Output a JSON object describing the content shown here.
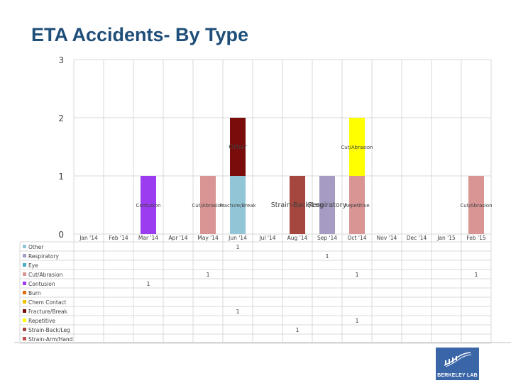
{
  "page": {
    "title": "ETA Accidents- By Type"
  },
  "logo": {
    "text": "BERKELEY LAB"
  },
  "chart_data": {
    "type": "bar",
    "stacked": true,
    "title": "ETA Accidents- By Type",
    "xlabel": "",
    "ylabel": "",
    "ylim": [
      0,
      3
    ],
    "yticks": [
      "0",
      "1",
      "2",
      "3"
    ],
    "grid": true,
    "legend": "bottom-left",
    "data_table": true,
    "categories": [
      "Jan '14",
      "Feb '14",
      "Mar '14",
      "Apr '14",
      "May '14",
      "Jun '14",
      "Jul '14",
      "Aug '14",
      "Sep '14",
      "Oct '14",
      "Nov '14",
      "Dec '14",
      "Jan '15",
      "Feb '15"
    ],
    "series": [
      {
        "name": "Other",
        "color": "#92c5d6",
        "values": [
          null,
          null,
          null,
          null,
          null,
          1,
          null,
          null,
          null,
          null,
          null,
          null,
          null,
          null
        ],
        "labels": [
          "",
          "",
          "",
          "",
          "",
          "1",
          "",
          "",
          "",
          "",
          "",
          "",
          "",
          ""
        ]
      },
      {
        "name": "Respiratory",
        "color": "#a69bc2",
        "values": [
          null,
          null,
          null,
          null,
          null,
          null,
          null,
          null,
          1,
          null,
          null,
          null,
          null,
          null
        ],
        "labels": [
          "",
          "",
          "",
          "",
          "",
          "",
          "",
          "",
          "1",
          "",
          "",
          "",
          "",
          ""
        ]
      },
      {
        "name": "Eye",
        "color": "#4bacc6",
        "values": [
          null,
          null,
          null,
          null,
          null,
          null,
          null,
          null,
          null,
          null,
          null,
          null,
          null,
          null
        ],
        "labels": [
          "",
          "",
          "",
          "",
          "",
          "",
          "",
          "",
          "",
          "",
          "",
          "",
          "",
          ""
        ]
      },
      {
        "name": "Cut/Abrasion",
        "color": "#d99594",
        "values": [
          null,
          null,
          null,
          null,
          1,
          null,
          null,
          null,
          null,
          1,
          null,
          null,
          null,
          1
        ],
        "labels": [
          "",
          "",
          "",
          "",
          "1",
          "",
          "",
          "",
          "",
          "1",
          "",
          "",
          "",
          "1"
        ]
      },
      {
        "name": "Contusion",
        "color": "#9b3cf0",
        "values": [
          null,
          null,
          1,
          null,
          null,
          null,
          null,
          null,
          null,
          null,
          null,
          null,
          null,
          null
        ],
        "labels": [
          "",
          "",
          "1",
          "",
          "",
          "",
          "",
          "",
          "",
          "",
          "",
          "",
          "",
          ""
        ]
      },
      {
        "name": "Burn",
        "color": "#e46c0a",
        "values": [
          null,
          null,
          null,
          null,
          null,
          null,
          null,
          null,
          null,
          null,
          null,
          null,
          null,
          null
        ],
        "labels": [
          "",
          "",
          "",
          "",
          "",
          "",
          "",
          "",
          "",
          "",
          "",
          "",
          "",
          ""
        ]
      },
      {
        "name": "Chem Contact",
        "color": "#f2c200",
        "values": [
          null,
          null,
          null,
          null,
          null,
          null,
          null,
          null,
          null,
          null,
          null,
          null,
          null,
          null
        ],
        "labels": [
          "",
          "",
          "",
          "",
          "",
          "",
          "",
          "",
          "",
          "",
          "",
          "",
          "",
          ""
        ]
      },
      {
        "name": "Fracture/Break",
        "color": "#7b0c0c",
        "values": [
          null,
          null,
          null,
          null,
          null,
          1,
          null,
          null,
          null,
          null,
          null,
          null,
          null,
          null
        ],
        "labels": [
          "",
          "",
          "",
          "",
          "",
          "1",
          "",
          "",
          "",
          "",
          "",
          "",
          "",
          ""
        ]
      },
      {
        "name": "Repetitive",
        "color": "#ffff00",
        "values": [
          null,
          null,
          null,
          null,
          null,
          null,
          null,
          null,
          null,
          1,
          null,
          null,
          null,
          null
        ],
        "labels": [
          "",
          "",
          "",
          "",
          "",
          "",
          "",
          "",
          "",
          "1",
          "",
          "",
          "",
          ""
        ]
      },
      {
        "name": "Strain-Back/Leg",
        "color": "#a5473e",
        "values": [
          null,
          null,
          null,
          null,
          null,
          null,
          null,
          1,
          null,
          null,
          null,
          null,
          null,
          null
        ],
        "labels": [
          "",
          "",
          "",
          "",
          "",
          "",
          "",
          "1",
          "",
          "",
          "",
          "",
          "",
          ""
        ]
      },
      {
        "name": "Strain-Arm/Hand",
        "color": "#c0504d",
        "values": [
          null,
          null,
          null,
          null,
          null,
          null,
          null,
          null,
          null,
          null,
          null,
          null,
          null,
          null
        ],
        "labels": [
          "",
          "",
          "",
          "",
          "",
          "",
          "",
          "",
          "",
          "",
          "",
          "",
          "",
          ""
        ]
      }
    ],
    "annotations": [
      {
        "text": "Other",
        "category": "Jun '14",
        "y": 1.5,
        "size": "medium"
      },
      {
        "text": "Cut/Abrasion",
        "category": "Oct '14",
        "y": 1.5,
        "size": "small"
      },
      {
        "text": "Contusion",
        "category": "Mar '14",
        "y": 0.5,
        "size": "small"
      },
      {
        "text": "Cut/Abrasion",
        "category": "May '14",
        "y": 0.5,
        "size": "small"
      },
      {
        "text": "Fracture/Break",
        "category": "Jun '14",
        "y": 0.5,
        "size": "small"
      },
      {
        "text": "Strain-Back/Leg",
        "category": "Aug '14",
        "y": 0.5,
        "size": "large"
      },
      {
        "text": "Respiratory",
        "category": "Sep '14",
        "y": 0.5,
        "size": "large"
      },
      {
        "text": "Repetitive",
        "category": "Oct '14",
        "y": 0.5,
        "size": "small"
      },
      {
        "text": "Cut/Abrasion",
        "category": "Feb '15",
        "y": 0.5,
        "size": "small"
      }
    ]
  }
}
